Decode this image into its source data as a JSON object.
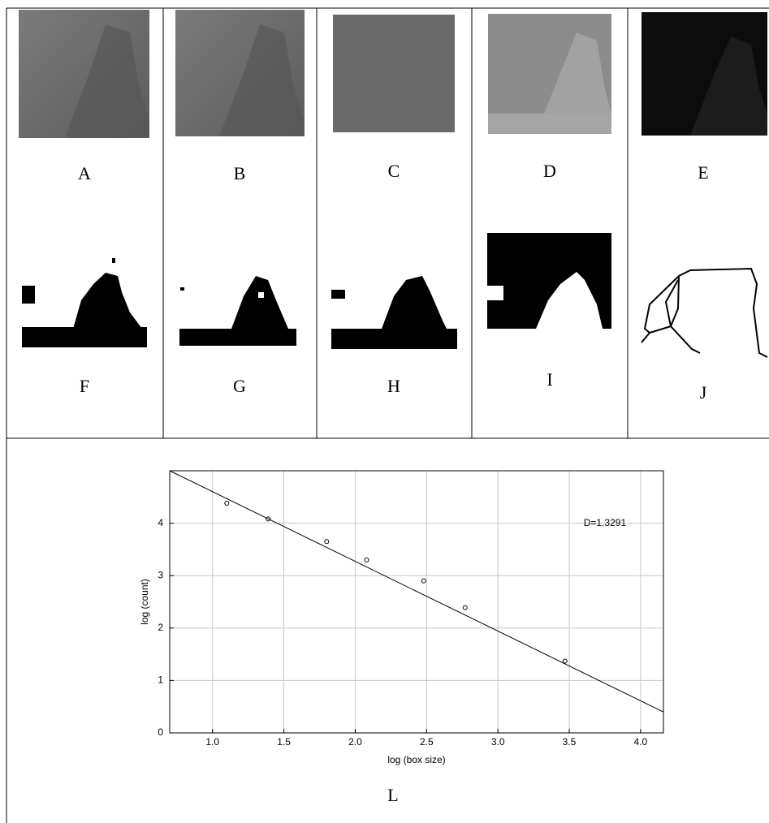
{
  "panels": [
    {
      "label": "A"
    },
    {
      "label": "B"
    },
    {
      "label": "C"
    },
    {
      "label": "D"
    },
    {
      "label": "E"
    },
    {
      "label": "F"
    },
    {
      "label": "G"
    },
    {
      "label": "H"
    },
    {
      "label": "I"
    },
    {
      "label": "J"
    }
  ],
  "chart_data": {
    "type": "scatter",
    "x_label": "log (box size)",
    "y_label": "log (count)",
    "annotation": "D=1.3291",
    "x": [
      1.1,
      1.39,
      1.8,
      2.08,
      2.48,
      2.77,
      3.47
    ],
    "values": [
      4.38,
      4.08,
      3.65,
      3.3,
      2.9,
      2.39,
      1.37
    ],
    "fit": {
      "x": [
        0.7,
        4.16
      ],
      "values": [
        5.0,
        0.4
      ]
    },
    "color": "#000000",
    "xlim": [
      0.7,
      4.16
    ],
    "ylim": [
      0,
      5
    ],
    "xticks": [
      {
        "value": 1,
        "label": "1.0"
      },
      1.5,
      {
        "value": 2,
        "label": "2.0"
      },
      2.5,
      {
        "value": 3,
        "label": "3.0"
      },
      3.5,
      {
        "value": 4,
        "label": "4.0"
      }
    ],
    "yticks": [
      0,
      1,
      2,
      3,
      4
    ],
    "grid": true
  },
  "caption": "L"
}
